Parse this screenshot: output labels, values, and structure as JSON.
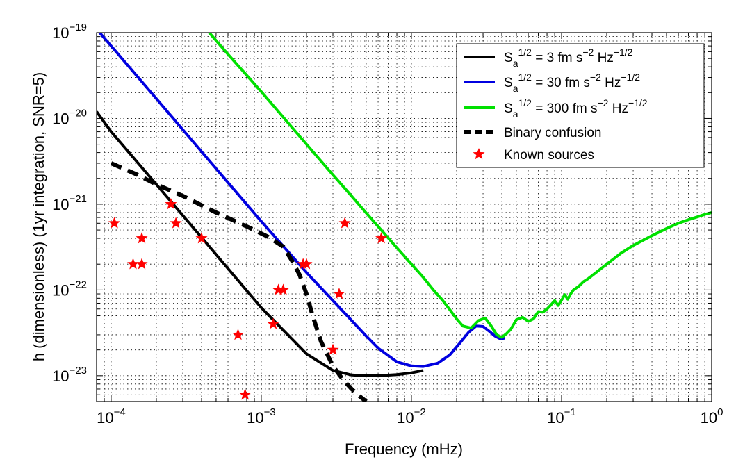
{
  "chart_data": {
    "type": "line",
    "title": "",
    "xlabel": "Frequency (mHz)",
    "ylabel": "h (dimensionless) (1yr integration, SNR=5)",
    "x_scale": "log",
    "y_scale": "log",
    "xlim": [
      8e-05,
      1.0
    ],
    "ylim": [
      5e-24,
      1e-19
    ],
    "grid": true,
    "legend_position": "top-right",
    "x_ticks": [
      {
        "base": "10",
        "exp": "−4",
        "value": 0.0001
      },
      {
        "base": "10",
        "exp": "−3",
        "value": 0.001
      },
      {
        "base": "10",
        "exp": "−2",
        "value": 0.01
      },
      {
        "base": "10",
        "exp": "−1",
        "value": 0.1
      },
      {
        "base": "10",
        "exp": "0",
        "value": 1
      }
    ],
    "y_ticks": [
      {
        "base": "10",
        "exp": "−23",
        "value": 1e-23
      },
      {
        "base": "10",
        "exp": "−22",
        "value": 1e-22
      },
      {
        "base": "10",
        "exp": "−21",
        "value": 1e-21
      },
      {
        "base": "10",
        "exp": "−20",
        "value": 1e-20
      },
      {
        "base": "10",
        "exp": "−19",
        "value": 1e-19
      }
    ],
    "series": [
      {
        "name": "Sa 1/2 = 3 fm s−2 Hz−1/2",
        "color": "#000000",
        "style": "solid",
        "legend": {
          "main": "S",
          "sub": "a",
          "sup": "1/2",
          "mid": " = 3 fm s",
          "sup2": "−2",
          "mid2": " Hz",
          "sup3": "−1/2"
        },
        "x": [
          8e-05,
          0.0001,
          0.0002,
          0.0004,
          0.001,
          0.002,
          0.003,
          0.004,
          0.005,
          0.006,
          0.008,
          0.01,
          0.012
        ],
        "y": [
          1.2e-20,
          7e-21,
          1.7e-21,
          4.1e-22,
          6.2e-23,
          1.8e-23,
          1.15e-23,
          1.02e-23,
          1e-23,
          1e-23,
          1.03e-23,
          1.08e-23,
          1.15e-23
        ]
      },
      {
        "name": "Sa 1/2 = 30 fm s−2 Hz−1/2",
        "color": "#0000e0",
        "style": "solid",
        "legend": {
          "main": "S",
          "sub": "a",
          "sup": "1/2",
          "mid": " = 30 fm s",
          "sup2": "−2",
          "mid2": " Hz",
          "sup3": "−1/2"
        },
        "x": [
          8e-05,
          0.0001,
          0.0002,
          0.0004,
          0.001,
          0.002,
          0.003,
          0.004,
          0.005,
          0.006,
          0.008,
          0.01,
          0.012,
          0.015,
          0.018,
          0.021,
          0.024,
          0.027,
          0.03,
          0.033,
          0.036,
          0.039,
          0.042
        ],
        "y": [
          1.1e-19,
          7e-20,
          1.7e-20,
          4.1e-21,
          6.3e-22,
          1.6e-22,
          7.5e-23,
          4.4e-23,
          2.9e-23,
          2.1e-23,
          1.45e-23,
          1.3e-23,
          1.28e-23,
          1.4e-23,
          1.75e-23,
          2.4e-23,
          3.2e-23,
          3.8e-23,
          3.75e-23,
          3.3e-23,
          2.9e-23,
          2.7e-23,
          2.75e-23
        ]
      },
      {
        "name": "Sa 1/2 = 300 fm s−2 Hz−1/2",
        "color": "#00e000",
        "style": "solid",
        "legend": {
          "main": "S",
          "sub": "a",
          "sup": "1/2",
          "mid": " = 300 fm s",
          "sup2": "−2",
          "mid2": " Hz",
          "sup3": "−1/2"
        },
        "x": [
          0.00045,
          0.0006,
          0.001,
          0.002,
          0.003,
          0.004,
          0.005,
          0.006,
          0.008,
          0.01,
          0.012,
          0.014,
          0.016,
          0.018,
          0.02,
          0.022,
          0.025,
          0.028,
          0.031,
          0.034,
          0.037,
          0.04,
          0.043,
          0.046,
          0.05,
          0.055,
          0.06,
          0.065,
          0.07,
          0.075,
          0.08,
          0.085,
          0.09,
          0.095,
          0.1,
          0.105,
          0.11,
          0.115,
          0.12,
          0.13,
          0.14,
          0.15,
          0.17,
          0.2,
          0.25,
          0.3,
          0.4,
          0.5,
          0.6,
          0.7,
          0.8,
          0.9,
          1.0
        ],
        "y": [
          1e-19,
          5.6e-20,
          2.05e-20,
          5e-21,
          2.2e-21,
          1.24e-21,
          7.9e-22,
          5.5e-22,
          3.1e-22,
          2e-22,
          1.4e-22,
          1e-22,
          7.7e-23,
          5.9e-23,
          4.6e-23,
          3.8e-23,
          3.6e-23,
          4.4e-23,
          4.7e-23,
          3.8e-23,
          3e-23,
          2.8e-23,
          3.1e-23,
          3.5e-23,
          4.5e-23,
          4.8e-23,
          4.3e-23,
          4.6e-23,
          5.6e-23,
          5.5e-23,
          6e-23,
          6.7e-23,
          7.5e-23,
          6.6e-23,
          7.6e-23,
          8.8e-23,
          7.8e-23,
          9e-23,
          1e-22,
          1.1e-22,
          1.25e-22,
          1.35e-22,
          1.6e-22,
          2e-22,
          2.7e-22,
          3.3e-22,
          4.3e-22,
          5.2e-22,
          6e-22,
          6.6e-22,
          7.1e-22,
          7.6e-22,
          8e-22
        ]
      },
      {
        "name": "Binary confusion",
        "color": "#000000",
        "style": "dashed",
        "legend": {
          "main": "Binary confusion"
        },
        "x": [
          0.0001,
          0.00015,
          0.0002,
          0.0003,
          0.0005,
          0.0008,
          0.0011,
          0.0014,
          0.0016,
          0.0018,
          0.002,
          0.0022,
          0.0025,
          0.003,
          0.0035,
          0.004,
          0.0045,
          0.005
        ],
        "y": [
          3e-21,
          2.2e-21,
          1.7e-21,
          1.25e-21,
          8e-22,
          5.5e-22,
          4.2e-22,
          3.2e-22,
          2.2e-22,
          1.5e-22,
          9e-23,
          5e-23,
          2.5e-23,
          1.3e-23,
          9e-24,
          7e-24,
          5.8e-24,
          5e-24
        ]
      },
      {
        "name": "Known sources",
        "color": "#ff0000",
        "style": "markers",
        "marker": "star",
        "legend": {
          "main": "Known sources"
        },
        "points": [
          [
            0.000105,
            6e-22
          ],
          [
            0.00014,
            2e-22
          ],
          [
            0.00016,
            2e-22
          ],
          [
            0.00016,
            4e-22
          ],
          [
            0.00025,
            1e-21
          ],
          [
            0.00027,
            6e-22
          ],
          [
            0.0004,
            4e-22
          ],
          [
            0.0007,
            3e-23
          ],
          [
            0.00078,
            6e-24
          ],
          [
            0.0012,
            4e-23
          ],
          [
            0.0013,
            1e-22
          ],
          [
            0.0014,
            1e-22
          ],
          [
            0.0019,
            2e-22
          ],
          [
            0.002,
            2e-22
          ],
          [
            0.003,
            2e-23
          ],
          [
            0.0033,
            9e-23
          ],
          [
            0.0036,
            6e-22
          ],
          [
            0.0063,
            4e-22
          ]
        ]
      }
    ]
  }
}
